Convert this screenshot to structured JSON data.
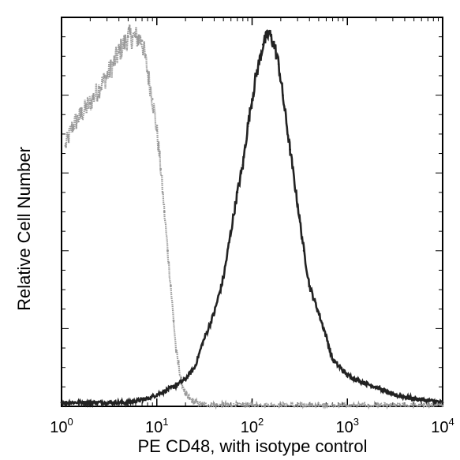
{
  "chart_data": {
    "type": "line",
    "title": "",
    "xlabel": "PE  CD48,  with isotype control",
    "ylabel": "Relative Cell Number",
    "x_scale": "log",
    "xlim": [
      1,
      10000
    ],
    "ylim": [
      0,
      1
    ],
    "x_ticks": [
      {
        "base": "10",
        "exp": "0"
      },
      {
        "base": "10",
        "exp": "1"
      },
      {
        "base": "10",
        "exp": "2"
      },
      {
        "base": "10",
        "exp": "3"
      },
      {
        "base": "10",
        "exp": "4"
      }
    ],
    "grid": false,
    "legend": "none",
    "series": [
      {
        "color": "#999999",
        "style": "light-noisy",
        "x": [
          1.1,
          1.3,
          1.6,
          2.0,
          2.5,
          3.0,
          3.5,
          4.0,
          4.5,
          5.0,
          5.5,
          6.0,
          7.0,
          8.0,
          9.0,
          10.0,
          11.0,
          12.0,
          13.0,
          14.0,
          15.0,
          16.0,
          18.0,
          20.0,
          22.0,
          25.0,
          30.0,
          40.0,
          60.0,
          100.0,
          200.0,
          500.0,
          1000.0,
          10000.0
        ],
        "y": [
          0.67,
          0.72,
          0.75,
          0.78,
          0.82,
          0.85,
          0.88,
          0.91,
          0.93,
          0.95,
          0.95,
          0.95,
          0.94,
          0.86,
          0.79,
          0.71,
          0.61,
          0.5,
          0.4,
          0.31,
          0.22,
          0.14,
          0.07,
          0.03,
          0.02,
          0.01,
          0.005,
          0.003,
          0.002,
          0.002,
          0.002,
          0.001,
          0.001,
          0.001
        ]
      },
      {
        "color": "#222222",
        "style": "dark-noisy",
        "x": [
          1.0,
          2.0,
          5.0,
          8.0,
          10.0,
          15.0,
          20.0,
          25.0,
          30.0,
          40.0,
          50.0,
          60.0,
          70.0,
          80.0,
          90.0,
          100.0,
          110.0,
          120.0,
          130.0,
          150.0,
          170.0,
          190.0,
          210.0,
          250.0,
          300.0,
          350.0,
          400.0,
          500.0,
          600.0,
          700.0,
          1000.0,
          1500.0,
          2000.0,
          3000.0,
          5000.0,
          10000.0
        ],
        "y": [
          0.01,
          0.01,
          0.01,
          0.02,
          0.03,
          0.05,
          0.07,
          0.1,
          0.16,
          0.24,
          0.33,
          0.45,
          0.55,
          0.62,
          0.72,
          0.79,
          0.85,
          0.89,
          0.93,
          0.96,
          0.93,
          0.88,
          0.8,
          0.66,
          0.52,
          0.4,
          0.31,
          0.24,
          0.18,
          0.12,
          0.08,
          0.06,
          0.05,
          0.03,
          0.02,
          0.01
        ]
      }
    ]
  }
}
